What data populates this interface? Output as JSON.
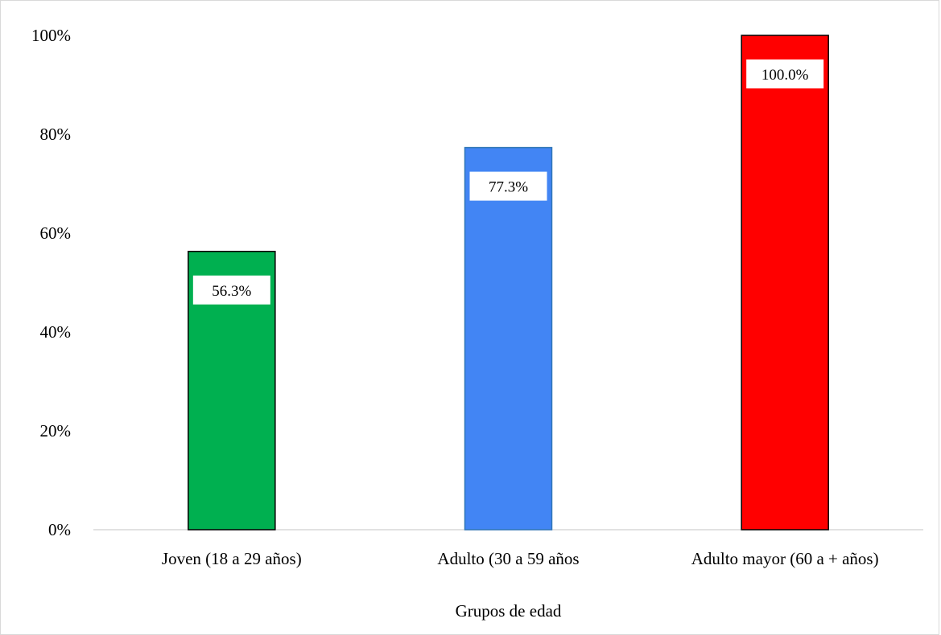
{
  "chart_data": {
    "type": "bar",
    "categories": [
      "Joven (18 a 29 años)",
      "Adulto (30 a 59 años",
      "Adulto mayor (60 a + años)"
    ],
    "values": [
      56.3,
      77.3,
      100.0
    ],
    "data_labels": [
      "56.3%",
      "77.3%",
      "100.0%"
    ],
    "colors": [
      "#00b050",
      "#4285f4",
      "#ff0000"
    ],
    "outline_colors": [
      "#000000",
      "#2e75b6",
      "#000000"
    ],
    "title": "",
    "xlabel": "Grupos de edad",
    "ylabel": "",
    "ylim": [
      0,
      100
    ],
    "yticks": [
      0,
      20,
      40,
      60,
      80,
      100
    ],
    "ytick_labels": [
      "0%",
      "20%",
      "40%",
      "60%",
      "80%",
      "100%"
    ],
    "grid": false,
    "legend": "none"
  }
}
